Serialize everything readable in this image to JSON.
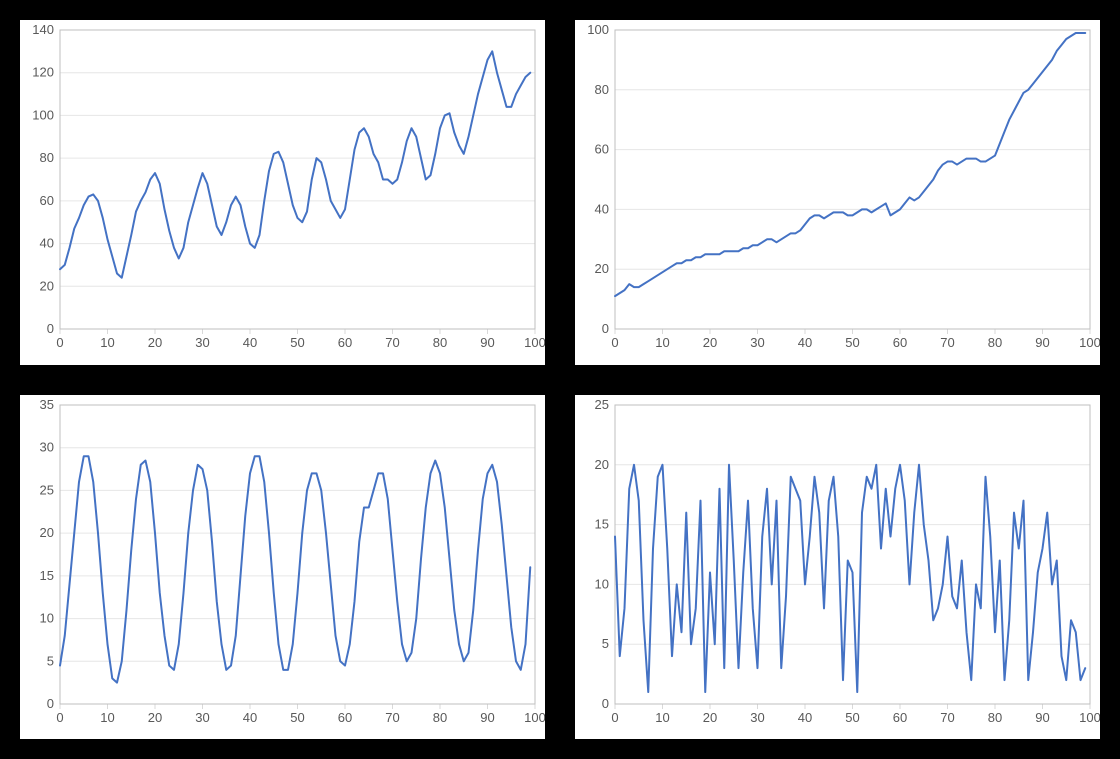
{
  "layout": {
    "rows": 2,
    "cols": 2,
    "page_bg": "#000000",
    "panel_bg": "#ffffff"
  },
  "common": {
    "line_color": "#4472c4",
    "line_width": 2,
    "grid_color": "#e6e6e6",
    "border_color": "#bfbfbf",
    "tick_color": "#d9d9d9",
    "label_color": "#595959",
    "label_fontsize": 13,
    "grid": true
  },
  "charts": [
    {
      "id": "chart-top-left",
      "type": "line",
      "xlim": [
        0,
        100
      ],
      "ylim": [
        0,
        140
      ],
      "xtick_step": 10,
      "ytick_step": 20,
      "x": [
        0,
        1,
        2,
        3,
        4,
        5,
        6,
        7,
        8,
        9,
        10,
        11,
        12,
        13,
        14,
        15,
        16,
        17,
        18,
        19,
        20,
        21,
        22,
        23,
        24,
        25,
        26,
        27,
        28,
        29,
        30,
        31,
        32,
        33,
        34,
        35,
        36,
        37,
        38,
        39,
        40,
        41,
        42,
        43,
        44,
        45,
        46,
        47,
        48,
        49,
        50,
        51,
        52,
        53,
        54,
        55,
        56,
        57,
        58,
        59,
        60,
        61,
        62,
        63,
        64,
        65,
        66,
        67,
        68,
        69,
        70,
        71,
        72,
        73,
        74,
        75,
        76,
        77,
        78,
        79,
        80,
        81,
        82,
        83,
        84,
        85,
        86,
        87,
        88,
        89,
        90,
        91,
        92,
        93,
        94,
        95,
        96,
        97,
        98,
        99
      ],
      "y": [
        28,
        30,
        38,
        47,
        52,
        58,
        62,
        63,
        60,
        52,
        42,
        34,
        26,
        24,
        34,
        44,
        55,
        60,
        64,
        70,
        73,
        68,
        56,
        46,
        38,
        33,
        38,
        50,
        58,
        66,
        73,
        68,
        58,
        48,
        44,
        50,
        58,
        62,
        58,
        48,
        40,
        38,
        44,
        60,
        74,
        82,
        83,
        78,
        68,
        58,
        52,
        50,
        55,
        70,
        80,
        78,
        70,
        60,
        56,
        52,
        56,
        70,
        84,
        92,
        94,
        90,
        82,
        78,
        70,
        70,
        68,
        70,
        78,
        88,
        94,
        90,
        80,
        70,
        72,
        82,
        94,
        100,
        101,
        92,
        86,
        82,
        90,
        100,
        110,
        118,
        126,
        130,
        120,
        112,
        104,
        104,
        110,
        114,
        118,
        120
      ]
    },
    {
      "id": "chart-top-right",
      "type": "line",
      "xlim": [
        0,
        100
      ],
      "ylim": [
        0,
        100
      ],
      "xtick_step": 10,
      "ytick_step": 20,
      "x": [
        0,
        1,
        2,
        3,
        4,
        5,
        6,
        7,
        8,
        9,
        10,
        11,
        12,
        13,
        14,
        15,
        16,
        17,
        18,
        19,
        20,
        21,
        22,
        23,
        24,
        25,
        26,
        27,
        28,
        29,
        30,
        31,
        32,
        33,
        34,
        35,
        36,
        37,
        38,
        39,
        40,
        41,
        42,
        43,
        44,
        45,
        46,
        47,
        48,
        49,
        50,
        51,
        52,
        53,
        54,
        55,
        56,
        57,
        58,
        59,
        60,
        61,
        62,
        63,
        64,
        65,
        66,
        67,
        68,
        69,
        70,
        71,
        72,
        73,
        74,
        75,
        76,
        77,
        78,
        79,
        80,
        81,
        82,
        83,
        84,
        85,
        86,
        87,
        88,
        89,
        90,
        91,
        92,
        93,
        94,
        95,
        96,
        97,
        98,
        99
      ],
      "y": [
        11,
        12,
        13,
        15,
        14,
        14,
        15,
        16,
        17,
        18,
        19,
        20,
        21,
        22,
        22,
        23,
        23,
        24,
        24,
        25,
        25,
        25,
        25,
        26,
        26,
        26,
        26,
        27,
        27,
        28,
        28,
        29,
        30,
        30,
        29,
        30,
        31,
        32,
        32,
        33,
        35,
        37,
        38,
        38,
        37,
        38,
        39,
        39,
        39,
        38,
        38,
        39,
        40,
        40,
        39,
        40,
        41,
        42,
        38,
        39,
        40,
        42,
        44,
        43,
        44,
        46,
        48,
        50,
        53,
        55,
        56,
        56,
        55,
        56,
        57,
        57,
        57,
        56,
        56,
        57,
        58,
        62,
        66,
        70,
        73,
        76,
        79,
        80,
        82,
        84,
        86,
        88,
        90,
        93,
        95,
        97,
        98,
        99,
        99,
        99
      ]
    },
    {
      "id": "chart-bottom-left",
      "type": "line",
      "xlim": [
        0,
        100
      ],
      "ylim": [
        0,
        35
      ],
      "xtick_step": 10,
      "ytick_step": 5,
      "x": [
        0,
        1,
        2,
        3,
        4,
        5,
        6,
        7,
        8,
        9,
        10,
        11,
        12,
        13,
        14,
        15,
        16,
        17,
        18,
        19,
        20,
        21,
        22,
        23,
        24,
        25,
        26,
        27,
        28,
        29,
        30,
        31,
        32,
        33,
        34,
        35,
        36,
        37,
        38,
        39,
        40,
        41,
        42,
        43,
        44,
        45,
        46,
        47,
        48,
        49,
        50,
        51,
        52,
        53,
        54,
        55,
        56,
        57,
        58,
        59,
        60,
        61,
        62,
        63,
        64,
        65,
        66,
        67,
        68,
        69,
        70,
        71,
        72,
        73,
        74,
        75,
        76,
        77,
        78,
        79,
        80,
        81,
        82,
        83,
        84,
        85,
        86,
        87,
        88,
        89,
        90,
        91,
        92,
        93,
        94,
        95,
        96,
        97,
        98,
        99
      ],
      "y": [
        4.5,
        8,
        14,
        20,
        26,
        29,
        29,
        26,
        20,
        13,
        7,
        3,
        2.5,
        5,
        11,
        18,
        24,
        28,
        28.5,
        26,
        20,
        13,
        8,
        4.5,
        4,
        7,
        13,
        20,
        25,
        28,
        27.5,
        25,
        19,
        12,
        7,
        4,
        4.5,
        8,
        15,
        22,
        27,
        29,
        29,
        26,
        20,
        13,
        7,
        4,
        4,
        7,
        13,
        20,
        25,
        27,
        27,
        25,
        20,
        14,
        8,
        5,
        4.5,
        7,
        12,
        19,
        23,
        23,
        25,
        27,
        27,
        24,
        18,
        12,
        7,
        5,
        6,
        10,
        17,
        23,
        27,
        28.5,
        27,
        23,
        17,
        11,
        7,
        5,
        6,
        11,
        18,
        24,
        27,
        28,
        26,
        21,
        15,
        9,
        5,
        4,
        7,
        16
      ]
    },
    {
      "id": "chart-bottom-right",
      "type": "line",
      "xlim": [
        0,
        100
      ],
      "ylim": [
        0,
        25
      ],
      "xtick_step": 10,
      "ytick_step": 5,
      "x": [
        0,
        1,
        2,
        3,
        4,
        5,
        6,
        7,
        8,
        9,
        10,
        11,
        12,
        13,
        14,
        15,
        16,
        17,
        18,
        19,
        20,
        21,
        22,
        23,
        24,
        25,
        26,
        27,
        28,
        29,
        30,
        31,
        32,
        33,
        34,
        35,
        36,
        37,
        38,
        39,
        40,
        41,
        42,
        43,
        44,
        45,
        46,
        47,
        48,
        49,
        50,
        51,
        52,
        53,
        54,
        55,
        56,
        57,
        58,
        59,
        60,
        61,
        62,
        63,
        64,
        65,
        66,
        67,
        68,
        69,
        70,
        71,
        72,
        73,
        74,
        75,
        76,
        77,
        78,
        79,
        80,
        81,
        82,
        83,
        84,
        85,
        86,
        87,
        88,
        89,
        90,
        91,
        92,
        93,
        94,
        95,
        96,
        97,
        98,
        99
      ],
      "y": [
        14,
        4,
        8,
        18,
        20,
        17,
        7,
        1,
        13,
        19,
        20,
        13,
        4,
        10,
        6,
        16,
        5,
        8,
        17,
        1,
        11,
        5,
        18,
        3,
        20,
        12,
        3,
        11,
        17,
        8,
        3,
        14,
        18,
        10,
        17,
        3,
        9,
        19,
        18,
        17,
        10,
        14,
        19,
        16,
        8,
        17,
        19,
        14,
        2,
        12,
        11,
        1,
        16,
        19,
        18,
        20,
        13,
        18,
        14,
        18,
        20,
        17,
        10,
        16,
        20,
        15,
        12,
        7,
        8,
        10,
        14,
        9,
        8,
        12,
        6,
        2,
        10,
        8,
        19,
        14,
        6,
        12,
        2,
        7,
        16,
        13,
        17,
        2,
        6,
        11,
        13,
        16,
        10,
        12,
        4,
        2,
        7,
        6,
        2,
        3
      ]
    }
  ]
}
